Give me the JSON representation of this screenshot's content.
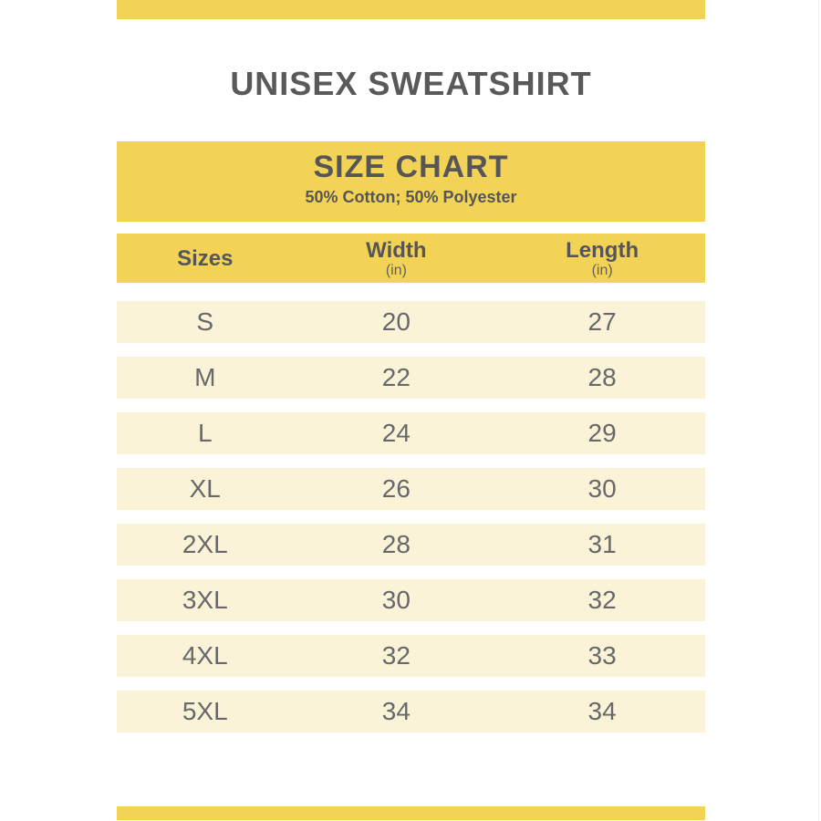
{
  "page": {
    "title": "UNISEX SWEATSHIRT"
  },
  "size_chart_header": {
    "title": "SIZE CHART",
    "subtitle": "50% Cotton; 50% Polyester"
  },
  "table": {
    "columns": [
      {
        "label": "Sizes",
        "unit": ""
      },
      {
        "label": "Width",
        "unit": "(in)"
      },
      {
        "label": "Length",
        "unit": "(in)"
      }
    ],
    "rows": [
      {
        "size": "S",
        "width": "20",
        "length": "27"
      },
      {
        "size": "M",
        "width": "22",
        "length": "28"
      },
      {
        "size": "L",
        "width": "24",
        "length": "29"
      },
      {
        "size": "XL",
        "width": "26",
        "length": "30"
      },
      {
        "size": "2XL",
        "width": "28",
        "length": "31"
      },
      {
        "size": "3XL",
        "width": "30",
        "length": "32"
      },
      {
        "size": "4XL",
        "width": "32",
        "length": "33"
      },
      {
        "size": "5XL",
        "width": "34",
        "length": "34"
      }
    ]
  },
  "chart_data": {
    "type": "table",
    "title": "SIZE CHART",
    "subtitle": "50% Cotton; 50% Polyester",
    "product_title": "UNISEX SWEATSHIRT",
    "columns": [
      "Sizes",
      "Width (in)",
      "Length (in)"
    ],
    "rows": [
      [
        "S",
        20,
        27
      ],
      [
        "M",
        22,
        28
      ],
      [
        "L",
        24,
        29
      ],
      [
        "XL",
        26,
        30
      ],
      [
        "2XL",
        28,
        31
      ],
      [
        "3XL",
        30,
        32
      ],
      [
        "4XL",
        32,
        33
      ],
      [
        "5XL",
        34,
        34
      ]
    ]
  },
  "colors": {
    "accent_yellow": "#F2D355",
    "row_cream": "#FAF3D8",
    "heading_text": "#59595B",
    "row_text": "#68686B"
  }
}
